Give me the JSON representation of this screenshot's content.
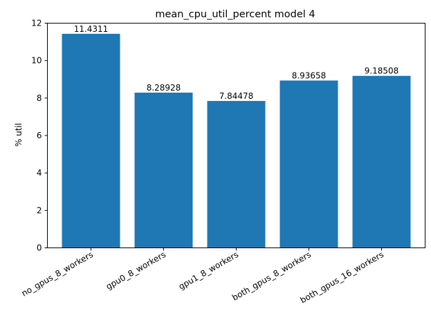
{
  "chart_data": {
    "type": "bar",
    "title": "mean_cpu_util_percent model 4",
    "xlabel": "",
    "ylabel": "% util",
    "categories": [
      "no_gpus_8_workers",
      "gpu0_8_workers",
      "gpu1_8_workers",
      "both_gpus_8_workers",
      "both_gpus_16_workers"
    ],
    "values": [
      11.4311,
      8.28928,
      7.84478,
      8.93658,
      9.18508
    ],
    "value_labels": [
      "11.4311",
      "8.28928",
      "7.84478",
      "8.93658",
      "9.18508"
    ],
    "ylim": [
      0,
      12
    ],
    "yticks": [
      "0",
      "2",
      "4",
      "6",
      "8",
      "10",
      "12"
    ],
    "bar_color": "#1f77b4",
    "grid": false,
    "legend": false
  }
}
